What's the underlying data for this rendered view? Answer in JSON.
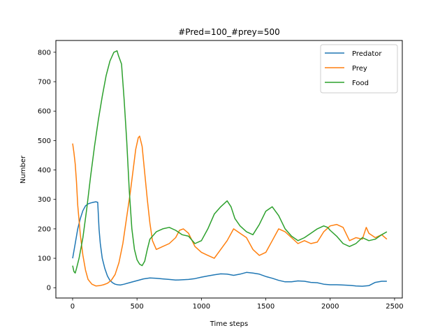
{
  "chart_data": {
    "type": "line",
    "title": "#Pred=100_#prey=500",
    "xlabel": "Time steps",
    "ylabel": "Number",
    "xlim": [
      -130,
      2560
    ],
    "ylim": [
      -35,
      840
    ],
    "xticks": [
      0,
      500,
      1000,
      1500,
      2000,
      2500
    ],
    "yticks": [
      0,
      100,
      200,
      300,
      400,
      500,
      600,
      700,
      800
    ],
    "grid": false,
    "legend_position": "top-right",
    "series": [
      {
        "name": "Predator",
        "color": "#1f77b4",
        "x": [
          0,
          20,
          40,
          60,
          80,
          100,
          120,
          140,
          160,
          180,
          195,
          205,
          215,
          230,
          250,
          270,
          290,
          310,
          330,
          350,
          370,
          400,
          450,
          500,
          550,
          600,
          650,
          700,
          750,
          800,
          850,
          900,
          950,
          1000,
          1050,
          1100,
          1150,
          1200,
          1250,
          1300,
          1350,
          1400,
          1450,
          1500,
          1550,
          1600,
          1650,
          1700,
          1750,
          1800,
          1850,
          1900,
          1950,
          2000,
          2050,
          2100,
          2150,
          2200,
          2250,
          2300,
          2350,
          2400,
          2440
        ],
        "y": [
          100,
          150,
          200,
          235,
          262,
          278,
          285,
          288,
          290,
          292,
          290,
          200,
          150,
          100,
          65,
          40,
          25,
          17,
          12,
          10,
          9,
          12,
          18,
          24,
          30,
          33,
          32,
          30,
          28,
          26,
          27,
          28,
          31,
          36,
          40,
          44,
          47,
          46,
          42,
          46,
          52,
          50,
          46,
          38,
          32,
          25,
          20,
          20,
          23,
          22,
          18,
          17,
          12,
          10,
          10,
          9,
          8,
          6,
          5,
          7,
          18,
          22,
          22
        ]
      },
      {
        "name": "Prey",
        "color": "#ff7f0e",
        "x": [
          0,
          10,
          20,
          30,
          40,
          60,
          80,
          100,
          120,
          150,
          180,
          210,
          240,
          270,
          300,
          330,
          360,
          390,
          420,
          450,
          470,
          490,
          510,
          520,
          540,
          560,
          580,
          600,
          620,
          650,
          700,
          750,
          800,
          830,
          860,
          900,
          950,
          1000,
          1050,
          1100,
          1150,
          1200,
          1250,
          1300,
          1350,
          1400,
          1450,
          1500,
          1550,
          1600,
          1650,
          1700,
          1750,
          1800,
          1850,
          1900,
          1950,
          2000,
          2050,
          2100,
          2150,
          2200,
          2250,
          2280,
          2300,
          2350,
          2400,
          2440
        ],
        "y": [
          490,
          460,
          420,
          360,
          280,
          180,
          110,
          60,
          28,
          12,
          6,
          7,
          10,
          15,
          25,
          45,
          85,
          150,
          240,
          330,
          400,
          470,
          510,
          515,
          480,
          390,
          300,
          220,
          160,
          130,
          140,
          150,
          170,
          195,
          200,
          185,
          140,
          120,
          110,
          100,
          130,
          160,
          200,
          185,
          170,
          130,
          110,
          120,
          160,
          200,
          190,
          170,
          150,
          160,
          150,
          155,
          190,
          210,
          215,
          205,
          160,
          170,
          165,
          205,
          185,
          170,
          180,
          165
        ]
      },
      {
        "name": "Food",
        "color": "#2ca02c",
        "x": [
          0,
          10,
          20,
          30,
          50,
          80,
          110,
          140,
          170,
          200,
          230,
          260,
          290,
          320,
          345,
          355,
          380,
          400,
          420,
          440,
          460,
          480,
          500,
          520,
          540,
          560,
          580,
          600,
          650,
          700,
          750,
          800,
          850,
          900,
          950,
          1000,
          1050,
          1100,
          1150,
          1200,
          1230,
          1260,
          1300,
          1350,
          1400,
          1450,
          1500,
          1550,
          1600,
          1650,
          1700,
          1750,
          1800,
          1850,
          1900,
          1950,
          1980,
          2000,
          2050,
          2100,
          2150,
          2200,
          2250,
          2300,
          2350,
          2400,
          2440
        ],
        "y": [
          75,
          55,
          50,
          65,
          100,
          170,
          270,
          380,
          480,
          570,
          650,
          720,
          770,
          800,
          805,
          790,
          760,
          640,
          500,
          330,
          200,
          130,
          95,
          80,
          75,
          90,
          130,
          165,
          190,
          200,
          205,
          195,
          180,
          175,
          150,
          160,
          200,
          250,
          275,
          295,
          275,
          235,
          210,
          190,
          180,
          215,
          260,
          275,
          245,
          200,
          175,
          160,
          170,
          185,
          200,
          210,
          205,
          195,
          175,
          150,
          140,
          150,
          170,
          160,
          165,
          180,
          190
        ]
      }
    ]
  }
}
